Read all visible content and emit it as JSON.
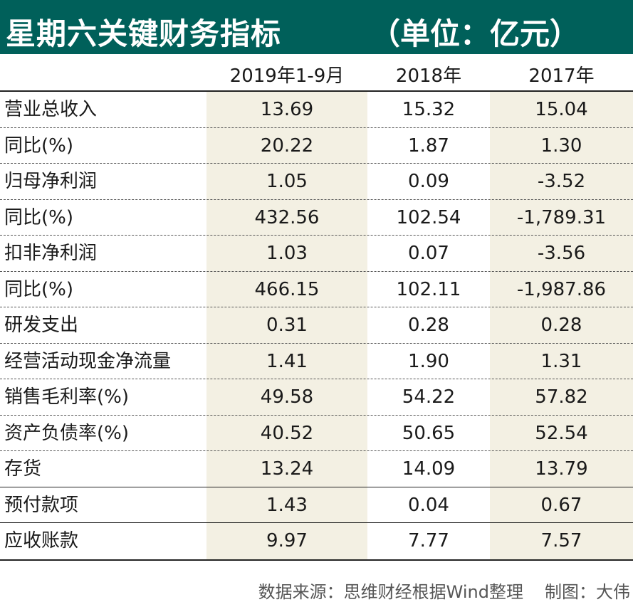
{
  "title": "星期六关键财务指标",
  "unit": "（单位：亿元）",
  "columns": [
    "2019年1-9月",
    "2018年",
    "2017年"
  ],
  "rows": [
    {
      "label": "营业总收入",
      "values": [
        "13.69",
        "15.32",
        "15.04"
      ]
    },
    {
      "label": "同比(%)",
      "values": [
        "20.22",
        "1.87",
        "1.30"
      ]
    },
    {
      "label": "归母净利润",
      "values": [
        "1.05",
        "0.09",
        "-3.52"
      ]
    },
    {
      "label": "同比(%)",
      "values": [
        "432.56",
        "102.54",
        "-1,789.31"
      ]
    },
    {
      "label": "扣非净利润",
      "values": [
        "1.03",
        "0.07",
        "-3.56"
      ]
    },
    {
      "label": "同比(%)",
      "values": [
        "466.15",
        "102.11",
        "-1,987.86"
      ]
    },
    {
      "label": "研发支出",
      "values": [
        "0.31",
        "0.28",
        "0.28"
      ]
    },
    {
      "label": "经营活动现金净流量",
      "values": [
        "1.41",
        "1.90",
        "1.31"
      ]
    },
    {
      "label": "销售毛利率(%)",
      "values": [
        "49.58",
        "54.22",
        "57.82"
      ]
    },
    {
      "label": "资产负债率(%)",
      "values": [
        "40.52",
        "50.65",
        "52.54"
      ]
    },
    {
      "label": "存货",
      "values": [
        "13.24",
        "14.09",
        "13.79"
      ]
    },
    {
      "label": "预付款项",
      "values": [
        "1.43",
        "0.04",
        "0.67"
      ]
    },
    {
      "label": "应收账款",
      "values": [
        "9.97",
        "7.77",
        "7.57"
      ]
    }
  ],
  "footer": {
    "source": "数据来源：思维财经根据Wind整理",
    "author": "制图：大伟"
  },
  "colors": {
    "title_bg": "#00605a",
    "column_shade": "#f3f0e3"
  }
}
